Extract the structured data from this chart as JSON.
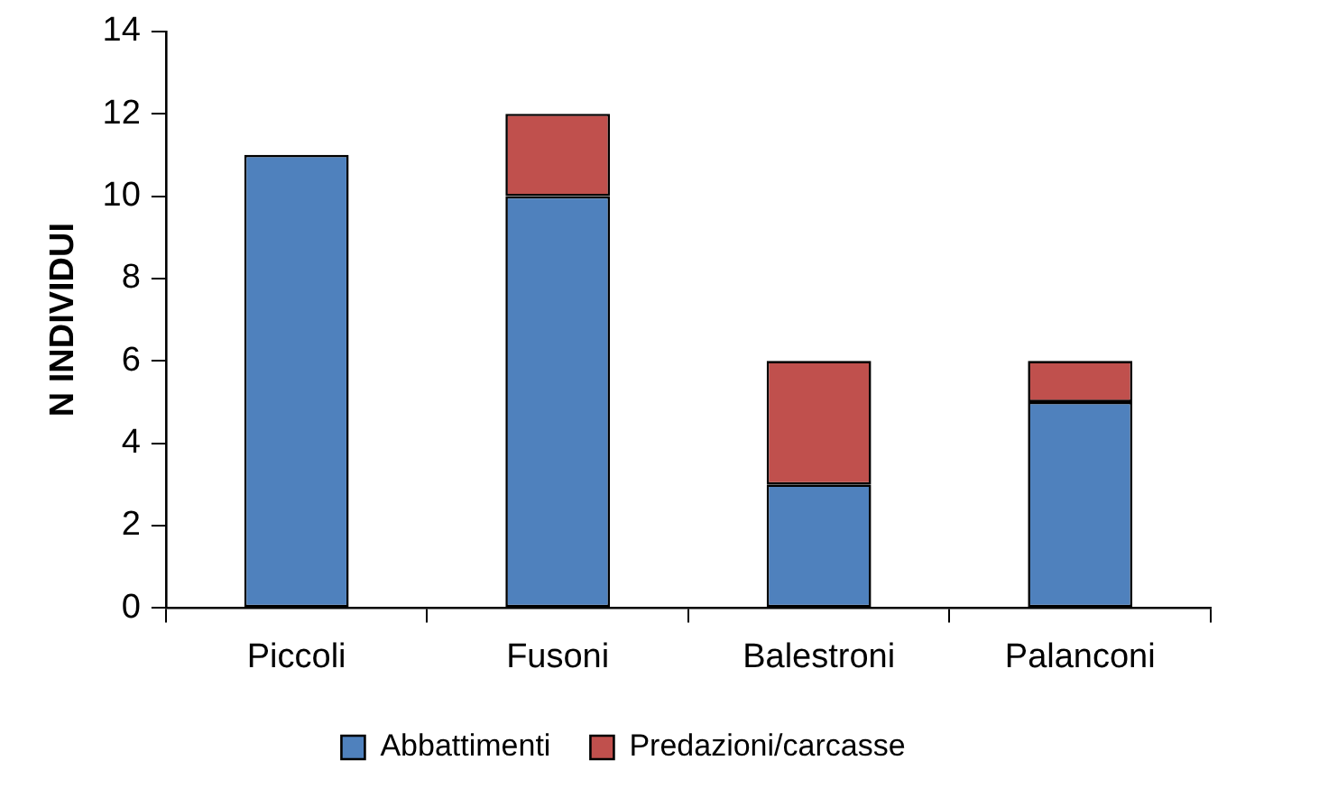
{
  "chart_data": {
    "type": "bar",
    "ylabel": "N INDIVIDUI",
    "categories": [
      "Piccoli",
      "Fusoni",
      "Balestroni",
      "Palanconi"
    ],
    "series": [
      {
        "name": "Abbattimenti",
        "color": "#4f81bd",
        "values": [
          11,
          10,
          3,
          5
        ]
      },
      {
        "name": "Predazioni/carcasse",
        "color": "#c0504d",
        "values": [
          0,
          2,
          3,
          1
        ]
      }
    ],
    "stacked": true,
    "ylim": [
      0,
      14
    ],
    "yticks": [
      0,
      2,
      4,
      6,
      8,
      10,
      12,
      14
    ],
    "grid": false,
    "legend": "bottom"
  }
}
